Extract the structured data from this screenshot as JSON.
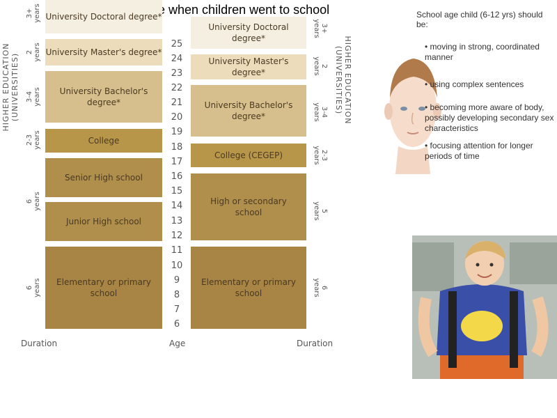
{
  "title": "Age when children went to school",
  "left_column": {
    "section_label": "HIGHER EDUCATION\n(UNIVERSITIES)",
    "blocks": [
      {
        "label": "University Doctoral degree*",
        "duration": "3+\nyears"
      },
      {
        "label": "University Master's degree*",
        "duration": "2\nyears"
      },
      {
        "label": "University Bachelor's degree*",
        "duration": "3-4\nyears"
      },
      {
        "label": "College",
        "duration": "2-3\nyears"
      },
      {
        "label": "Senior High school",
        "duration": ""
      },
      {
        "label": "Junior High school",
        "duration": "6\nyears"
      },
      {
        "label": "Elementary or primary school",
        "duration": "6\nyears"
      }
    ]
  },
  "right_column": {
    "section_label": "HIGHER EDUCATION\n(UNIVERSITIES)",
    "blocks": [
      {
        "label": "University Doctoral degree*",
        "duration": "3+\nyears"
      },
      {
        "label": "University Master's degree*",
        "duration": "2\nyears"
      },
      {
        "label": "University Bachelor's degree*",
        "duration": "3-4\nyears"
      },
      {
        "label": "College (CEGEP)",
        "duration": "2-3\nyears"
      },
      {
        "label": "High or secondary school",
        "duration": "5\nyears"
      },
      {
        "label": "Elementary or primary school",
        "duration": "6\nyears"
      }
    ]
  },
  "ages": [
    "25",
    "24",
    "23",
    "22",
    "21",
    "20",
    "19",
    "18",
    "17",
    "16",
    "15",
    "14",
    "13",
    "12",
    "11",
    "10",
    "9",
    "8",
    "7",
    "6"
  ],
  "footer": {
    "left": "Duration",
    "center": "Age",
    "right": "Duration"
  },
  "info": {
    "heading": "School age child (6-12 yrs) should be:",
    "items": [
      "moving in strong, coordinated manner",
      "using complex sentences",
      "becoming more aware of body, possibly developing secondary sex characteristics",
      "focusing attention for longer periods of time"
    ]
  },
  "images": {
    "child_face": "child-face-illustration",
    "boy_photo": "boy-with-backpack-photo"
  }
}
